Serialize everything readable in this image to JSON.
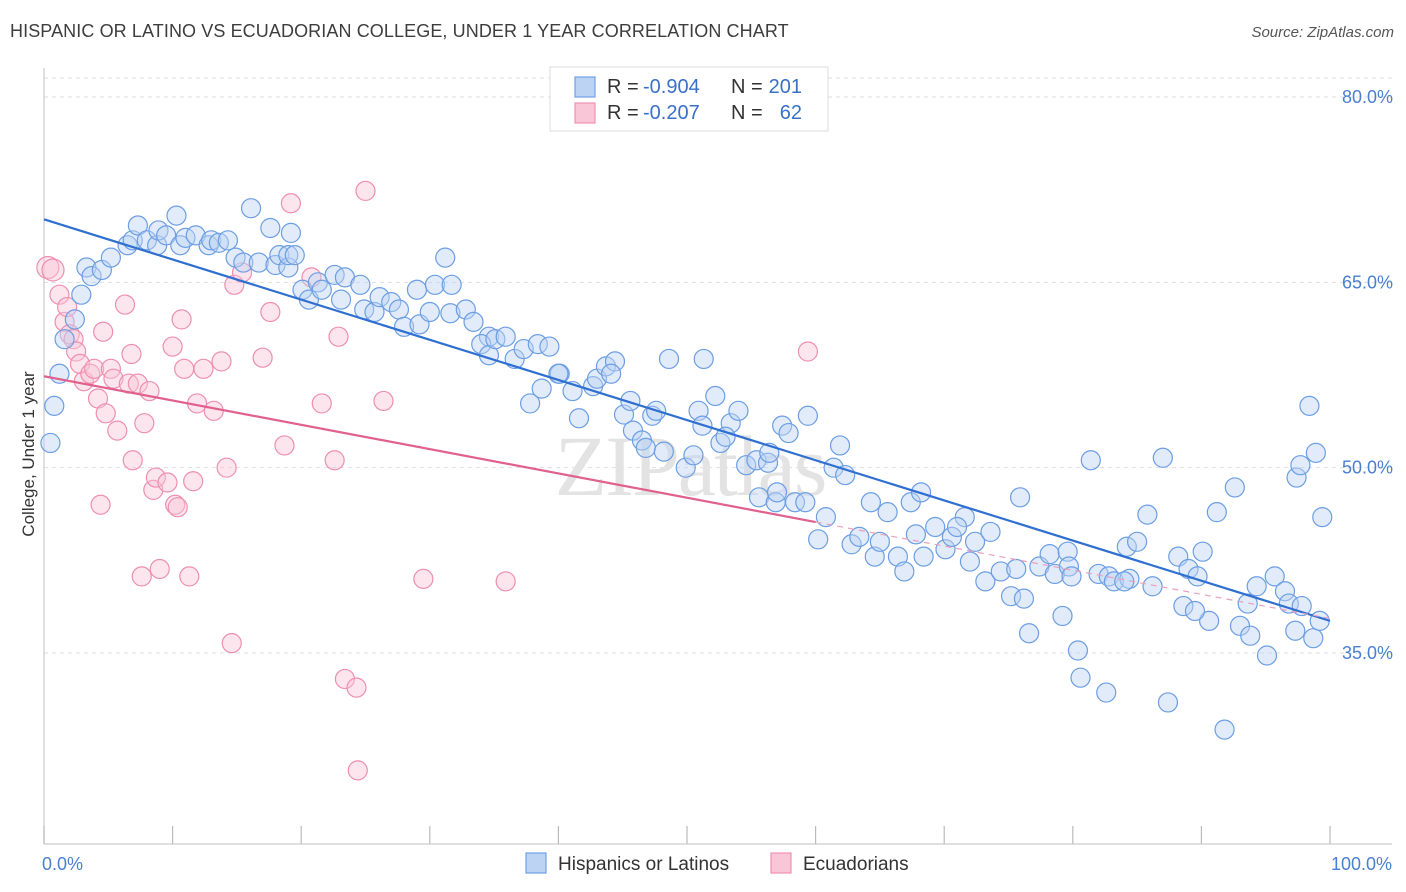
{
  "title": "HISPANIC OR LATINO VS ECUADORIAN COLLEGE, UNDER 1 YEAR CORRELATION CHART",
  "source": "Source: ZipAtlas.com",
  "watermark": "ZIPatlas",
  "legend": {
    "r_label": "R =",
    "n_label": "N =",
    "rows": [
      {
        "r": "-0.904",
        "n": "201",
        "color": "#6fa0e6"
      },
      {
        "r": "-0.207",
        "n": "62",
        "color": "#f08fb0"
      }
    ]
  },
  "chart_data": {
    "type": "scatter",
    "title": "HISPANIC OR LATINO VS ECUADORIAN COLLEGE, UNDER 1 YEAR CORRELATION CHART",
    "xlabel": "",
    "ylabel": "College, Under 1 year",
    "x_range": [
      0,
      100
    ],
    "y_range": [
      20,
      82
    ],
    "x_tick_labels": [
      "0.0%",
      "100.0%"
    ],
    "y_ticks": [
      35,
      50,
      65,
      80
    ],
    "y_tick_labels": [
      "35.0%",
      "50.0%",
      "65.0%",
      "80.0%"
    ],
    "grid": true,
    "legend_position": "top-center",
    "series": [
      {
        "name": "Hispanics or Latinos",
        "color": "#6fa0e6",
        "trend": {
          "x": [
            0,
            100
          ],
          "y": [
            70.1,
            37.6
          ]
        },
        "points": [
          [
            0.5,
            52
          ],
          [
            0.8,
            55
          ],
          [
            1.2,
            57.6
          ],
          [
            1.6,
            60.4
          ],
          [
            2.4,
            62
          ],
          [
            2.9,
            64
          ],
          [
            3.3,
            66.2
          ],
          [
            3.7,
            65.5
          ],
          [
            4.5,
            66
          ],
          [
            5.2,
            67
          ],
          [
            6.5,
            68
          ],
          [
            6.9,
            68.4
          ],
          [
            7.3,
            69.6
          ],
          [
            8,
            68.4
          ],
          [
            8.8,
            68
          ],
          [
            8.9,
            69.2
          ],
          [
            9.5,
            68.8
          ],
          [
            10.3,
            70.4
          ],
          [
            10.6,
            68
          ],
          [
            11,
            68.6
          ],
          [
            11.8,
            68.8
          ],
          [
            12.8,
            68
          ],
          [
            13,
            68.4
          ],
          [
            13.6,
            68.2
          ],
          [
            14.3,
            68.4
          ],
          [
            14.9,
            67
          ],
          [
            15.5,
            66.6
          ],
          [
            16.1,
            71
          ],
          [
            16.7,
            66.6
          ],
          [
            17.6,
            69.4
          ],
          [
            18,
            66.4
          ],
          [
            18.3,
            67.2
          ],
          [
            19,
            66.2
          ],
          [
            19,
            67.2
          ],
          [
            19.2,
            69
          ],
          [
            19.5,
            67.2
          ],
          [
            20.1,
            64.4
          ],
          [
            20.6,
            63.6
          ],
          [
            21.3,
            65
          ],
          [
            21.6,
            64.4
          ],
          [
            22.6,
            65.6
          ],
          [
            23.1,
            63.6
          ],
          [
            23.4,
            65.4
          ],
          [
            24.6,
            64.8
          ],
          [
            24.9,
            62.8
          ],
          [
            25.7,
            62.6
          ],
          [
            26.1,
            63.8
          ],
          [
            27,
            63.4
          ],
          [
            27.6,
            62.8
          ],
          [
            28,
            61.4
          ],
          [
            29,
            64.4
          ],
          [
            29.2,
            61.6
          ],
          [
            30,
            62.6
          ],
          [
            30.4,
            64.8
          ],
          [
            31.2,
            67
          ],
          [
            31.7,
            64.8
          ],
          [
            31.6,
            62.5
          ],
          [
            32.8,
            62.8
          ],
          [
            33.4,
            61.8
          ],
          [
            34.6,
            60.6
          ],
          [
            34,
            60
          ],
          [
            34.6,
            59.1
          ],
          [
            35.1,
            60.4
          ],
          [
            35.9,
            60.6
          ],
          [
            36.6,
            58.8
          ],
          [
            37.3,
            59.6
          ],
          [
            37.8,
            55.2
          ],
          [
            38.4,
            60
          ],
          [
            39.3,
            59.8
          ],
          [
            38.7,
            56.4
          ],
          [
            40.1,
            57.6
          ],
          [
            40,
            57.6
          ],
          [
            41.1,
            56.2
          ],
          [
            41.6,
            54
          ],
          [
            42.7,
            56.6
          ],
          [
            43,
            57.2
          ],
          [
            43.7,
            58.2
          ],
          [
            44.4,
            58.6
          ],
          [
            44.1,
            57.6
          ],
          [
            45.1,
            54.3
          ],
          [
            45.8,
            53
          ],
          [
            45.6,
            55.4
          ],
          [
            46.5,
            52.2
          ],
          [
            46.8,
            51.6
          ],
          [
            47.3,
            54.2
          ],
          [
            47.6,
            54.6
          ],
          [
            48.6,
            58.8
          ],
          [
            49.9,
            50
          ],
          [
            50.9,
            54.6
          ],
          [
            51.2,
            53.4
          ],
          [
            51.3,
            58.8
          ],
          [
            52.2,
            55.8
          ],
          [
            52.6,
            52
          ],
          [
            53.4,
            53.6
          ],
          [
            54,
            54.6
          ],
          [
            54.6,
            50.2
          ],
          [
            55.4,
            50.6
          ],
          [
            55.6,
            47.6
          ],
          [
            56.3,
            50.4
          ],
          [
            56.4,
            51.2
          ],
          [
            56.9,
            47.2
          ],
          [
            57.4,
            53.4
          ],
          [
            57.9,
            52.8
          ],
          [
            58.4,
            47.2
          ],
          [
            59.2,
            47.2
          ],
          [
            59.4,
            54.2
          ],
          [
            60.8,
            46
          ],
          [
            61.4,
            50
          ],
          [
            61.9,
            51.8
          ],
          [
            62.3,
            49.4
          ],
          [
            62.8,
            43.8
          ],
          [
            63.4,
            44.4
          ],
          [
            64.3,
            47.2
          ],
          [
            64.6,
            42.8
          ],
          [
            65.6,
            46.4
          ],
          [
            66.4,
            42.8
          ],
          [
            66.9,
            41.6
          ],
          [
            67.4,
            47.2
          ],
          [
            67.8,
            44.6
          ],
          [
            68.4,
            42.8
          ],
          [
            68.2,
            48
          ],
          [
            69.3,
            45.2
          ],
          [
            70.1,
            43.4
          ],
          [
            70.6,
            44.4
          ],
          [
            71.6,
            46
          ],
          [
            72,
            42.4
          ],
          [
            72.4,
            44
          ],
          [
            73.2,
            40.8
          ],
          [
            74.4,
            41.6
          ],
          [
            75.2,
            39.6
          ],
          [
            75.6,
            41.8
          ],
          [
            75.9,
            47.6
          ],
          [
            76.2,
            39.4
          ],
          [
            77.4,
            42
          ],
          [
            78.2,
            43
          ],
          [
            78.6,
            41.4
          ],
          [
            79.2,
            38
          ],
          [
            79.6,
            43.2
          ],
          [
            79.7,
            42
          ],
          [
            79.9,
            41.2
          ],
          [
            80.4,
            35.2
          ],
          [
            80.6,
            33
          ],
          [
            81.4,
            50.6
          ],
          [
            82,
            41.4
          ],
          [
            82.6,
            31.8
          ],
          [
            82.8,
            41.2
          ],
          [
            83.2,
            40.8
          ],
          [
            84.2,
            43.6
          ],
          [
            84.4,
            41
          ],
          [
            85,
            44
          ],
          [
            85.8,
            46.2
          ],
          [
            86.2,
            40.4
          ],
          [
            87,
            50.8
          ],
          [
            87.4,
            31
          ],
          [
            88.2,
            42.8
          ],
          [
            88.6,
            38.8
          ],
          [
            89,
            41.8
          ],
          [
            89.7,
            41.2
          ],
          [
            90.1,
            43.2
          ],
          [
            90.6,
            37.6
          ],
          [
            91.2,
            46.4
          ],
          [
            91.8,
            28.8
          ],
          [
            92.6,
            48.4
          ],
          [
            93,
            37.2
          ],
          [
            93.6,
            39
          ],
          [
            93.8,
            36.4
          ],
          [
            94.3,
            40.4
          ],
          [
            95.1,
            34.8
          ],
          [
            95.7,
            41.2
          ],
          [
            96.5,
            40
          ],
          [
            96.8,
            39
          ],
          [
            97.3,
            36.8
          ],
          [
            97.8,
            38.8
          ],
          [
            98.7,
            36.2
          ],
          [
            99.2,
            37.6
          ],
          [
            99.4,
            46
          ],
          [
            97.4,
            49.2
          ],
          [
            97.7,
            50.2
          ],
          [
            98.4,
            55
          ],
          [
            98.9,
            51.2
          ],
          [
            84,
            40.8
          ],
          [
            76.6,
            36.6
          ],
          [
            89.5,
            38.4
          ],
          [
            73.6,
            44.8
          ],
          [
            71,
            45.2
          ],
          [
            65,
            44
          ],
          [
            60.2,
            44.2
          ],
          [
            57,
            48
          ],
          [
            53,
            52.5
          ],
          [
            50.5,
            51
          ],
          [
            48.2,
            51.3
          ]
        ]
      },
      {
        "name": "Ecuadorians",
        "color": "#f08fb0",
        "trend": {
          "x": [
            0,
            60
          ],
          "y": [
            57.4,
            45.6
          ]
        },
        "trend_dashed": {
          "x": [
            60,
            100
          ],
          "y": [
            45.6,
            37.8
          ]
        },
        "points": [
          [
            0.3,
            66.2
          ],
          [
            0.7,
            66
          ],
          [
            1.2,
            64
          ],
          [
            1.6,
            61.8
          ],
          [
            1.8,
            63
          ],
          [
            2,
            60.8
          ],
          [
            2.3,
            60.4
          ],
          [
            2.5,
            59.4
          ],
          [
            2.8,
            58.4
          ],
          [
            3.1,
            57
          ],
          [
            3.6,
            57.6
          ],
          [
            3.9,
            58
          ],
          [
            4.2,
            55.6
          ],
          [
            4.4,
            47
          ],
          [
            4.6,
            61
          ],
          [
            4.8,
            54.4
          ],
          [
            5.2,
            58
          ],
          [
            5.4,
            57.2
          ],
          [
            5.7,
            53
          ],
          [
            6.3,
            63.2
          ],
          [
            6.6,
            56.8
          ],
          [
            6.8,
            59.2
          ],
          [
            6.9,
            50.6
          ],
          [
            7.3,
            56.8
          ],
          [
            7.6,
            41.2
          ],
          [
            7.8,
            53.6
          ],
          [
            8.2,
            56.2
          ],
          [
            8.5,
            48.2
          ],
          [
            8.7,
            49.2
          ],
          [
            9,
            41.8
          ],
          [
            9.6,
            48.8
          ],
          [
            10,
            59.8
          ],
          [
            10.2,
            47
          ],
          [
            10.4,
            46.8
          ],
          [
            10.7,
            62
          ],
          [
            10.9,
            58
          ],
          [
            11.3,
            41.2
          ],
          [
            11.6,
            48.9
          ],
          [
            11.9,
            55.2
          ],
          [
            12.4,
            58
          ],
          [
            13.2,
            54.6
          ],
          [
            13.8,
            58.6
          ],
          [
            14.2,
            50
          ],
          [
            14.6,
            35.8
          ],
          [
            14.8,
            64.8
          ],
          [
            15.4,
            65.8
          ],
          [
            17,
            58.9
          ],
          [
            17.6,
            62.6
          ],
          [
            18.7,
            51.8
          ],
          [
            19.2,
            71.4
          ],
          [
            20.8,
            65.4
          ],
          [
            22.6,
            50.6
          ],
          [
            22.9,
            60.6
          ],
          [
            23.4,
            32.9
          ],
          [
            24.3,
            32.2
          ],
          [
            24.4,
            25.5
          ],
          [
            25,
            72.4
          ],
          [
            26.4,
            55.4
          ],
          [
            29.5,
            41
          ],
          [
            35.9,
            40.8
          ],
          [
            59.4,
            59.4
          ],
          [
            21.6,
            55.2
          ]
        ]
      }
    ]
  },
  "bottom_legend": [
    "Hispanics or Latinos",
    "Ecuadorians"
  ]
}
